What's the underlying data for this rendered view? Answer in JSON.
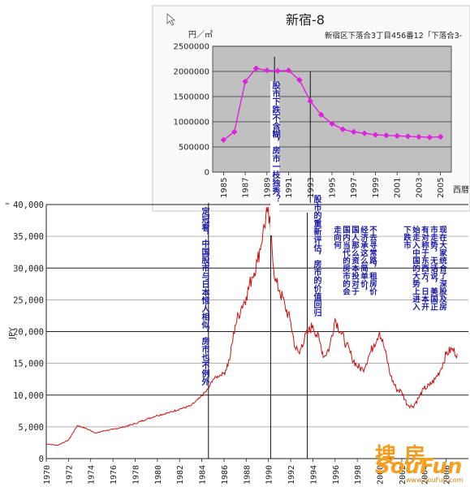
{
  "chart_data": [
    {
      "type": "line",
      "title": "新宿-8",
      "subtitle": "新宿区下落合3丁目456番12「下落合3-",
      "ylabel": "円／㎡",
      "xlabel": "西暦",
      "ylim": [
        0,
        2500000
      ],
      "yticks": [
        0,
        500000,
        1000000,
        1500000,
        2000000,
        2500000
      ],
      "ytick_labels": [
        "0",
        "500000",
        "1000000",
        "1500000",
        "2000000",
        "2500000"
      ],
      "xlim": [
        1984,
        2006
      ],
      "xticks": [
        1985,
        1987,
        1989,
        1991,
        1993,
        1995,
        1997,
        1999,
        2001,
        2003,
        2005
      ],
      "xtick_labels": [
        "1985",
        "1987",
        "1989",
        "1991",
        "1993",
        "1995",
        "1997",
        "1999",
        "2001",
        "2003",
        "2005"
      ],
      "series": [
        {
          "color": "#e020e0",
          "x": [
            1985,
            1986,
            1987,
            1988,
            1989,
            1990,
            1991,
            1992,
            1993,
            1994,
            1995,
            1996,
            1997,
            1998,
            1999,
            2000,
            2001,
            2002,
            2003,
            2004,
            2005
          ],
          "values": [
            640000,
            800000,
            1800000,
            2060000,
            2020000,
            2010000,
            2020000,
            1830000,
            1410000,
            1140000,
            960000,
            850000,
            800000,
            770000,
            740000,
            730000,
            720000,
            710000,
            700000,
            690000,
            700000
          ]
        }
      ],
      "plot_bg": "#c0c0c0",
      "grid": true
    },
    {
      "type": "line",
      "ylabel": "JPY",
      "ylim": [
        0,
        40000
      ],
      "yticks": [
        0,
        5000,
        10000,
        15000,
        20000,
        25000,
        30000,
        35000,
        40000
      ],
      "ytick_labels": [
        "0",
        "5,000",
        "10,000",
        "15,000",
        "20,000",
        "25,000",
        "30,000",
        "35,000",
        "40,000"
      ],
      "xlim": [
        1970,
        2008
      ],
      "xticks": [
        1970,
        1972,
        1974,
        1976,
        1978,
        1980,
        1982,
        1984,
        1986,
        1988,
        1990,
        1992,
        1994,
        1996,
        1998,
        2000,
        2002,
        2004,
        2006
      ],
      "xtick_labels": [
        "1970",
        "1972",
        "1974",
        "1976",
        "1978",
        "1980",
        "1982",
        "1984",
        "1986",
        "1988",
        "1990",
        "1992",
        "1994",
        "1996",
        "1998",
        "2000",
        "2002",
        "2004",
        "2006"
      ],
      "series": [
        {
          "color": "#cc1010",
          "x": [
            1970,
            1971,
            1972,
            1972.8,
            1973.5,
            1974.5,
            1975,
            1976,
            1977,
            1978,
            1979,
            1980,
            1981,
            1982,
            1983,
            1983.8,
            1984.6,
            1985,
            1986,
            1986.5,
            1987,
            1987.6,
            1988,
            1988.5,
            1989,
            1989.5,
            1989.9,
            1990.2,
            1990.6,
            1991,
            1991.5,
            1992,
            1992.4,
            1992.8,
            1993,
            1993.6,
            1994,
            1994.6,
            1995,
            1995.5,
            1996,
            1996.5,
            1997,
            1997.5,
            1998,
            1998.5,
            1999,
            1999.5,
            2000,
            2000.5,
            2001,
            2001.5,
            2002,
            2002.5,
            2003,
            2003.5,
            2004,
            2004.5,
            2005,
            2005.5,
            2006,
            2006.5,
            2007
          ],
          "values": [
            2300,
            2100,
            2900,
            5200,
            4800,
            4000,
            4300,
            4600,
            5000,
            5500,
            6200,
            6800,
            7200,
            7800,
            8300,
            9500,
            11000,
            12500,
            13500,
            15500,
            21000,
            24000,
            25500,
            28500,
            31000,
            35500,
            38800,
            36000,
            28000,
            26500,
            24000,
            21500,
            17500,
            16500,
            18000,
            20000,
            21000,
            18500,
            16000,
            17500,
            22000,
            20000,
            18000,
            16000,
            14500,
            14000,
            16000,
            18000,
            20000,
            17000,
            13000,
            11000,
            10500,
            8500,
            8200,
            9500,
            11000,
            11500,
            12500,
            14000,
            16500,
            17200,
            16500
          ]
        }
      ],
      "grid": true
    }
  ],
  "annotations": {
    "upper_mark": "股市下跌不含糊，房市一枝独秀？",
    "lower_1984": "定冠看，中国股市与日本惊人相似，房市也不例外",
    "lower_1990": "股市的重新评估，房市的价值回归",
    "lower_1994": "不去寻常路，租房价经济承这么简单价，国人那么资本投对于国内当代的房市的会走向何",
    "lower_1996": "现在大家统合了深股及房市走势，无话说，美国正有对称于东西方，日本开始走入中国的大势上进入下跌市"
  },
  "watermark": {
    "cn": "搜房",
    "en": "SouFun",
    "url": "www.SouFun.com"
  }
}
